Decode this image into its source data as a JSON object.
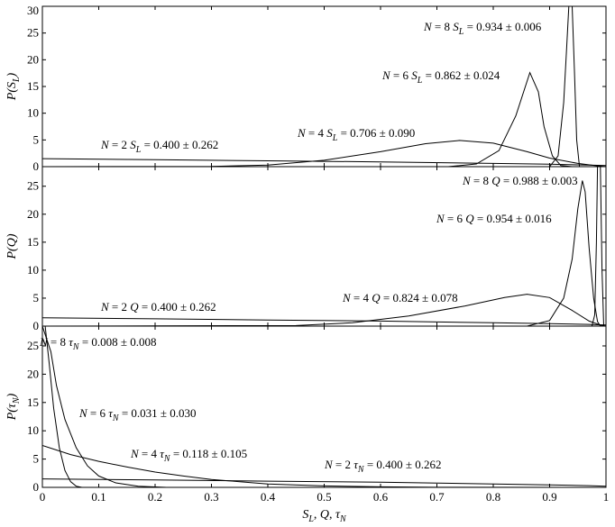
{
  "chart_data": [
    {
      "type": "line",
      "ylabel_html": "P(S_L)",
      "ylabel": {
        "base": "P(S",
        "sub": "L",
        "close": ")"
      },
      "xlim": [
        0,
        1
      ],
      "ylim": [
        0,
        30
      ],
      "yticks": [
        "0",
        "5",
        "10",
        "15",
        "20",
        "25",
        "30"
      ],
      "series": [
        {
          "N": 2,
          "points": [
            [
              0,
              1.5
            ],
            [
              0.2,
              1.3
            ],
            [
              0.4,
              1.1
            ],
            [
              0.6,
              0.9
            ],
            [
              0.8,
              0.6
            ],
            [
              0.9,
              0.45
            ],
            [
              0.97,
              0.3
            ],
            [
              1.0,
              0.2
            ]
          ]
        },
        {
          "N": 4,
          "points": [
            [
              0,
              0
            ],
            [
              0.3,
              0.05
            ],
            [
              0.4,
              0.3
            ],
            [
              0.5,
              1.2
            ],
            [
              0.6,
              2.8
            ],
            [
              0.68,
              4.3
            ],
            [
              0.74,
              4.9
            ],
            [
              0.8,
              4.4
            ],
            [
              0.86,
              2.8
            ],
            [
              0.9,
              1.6
            ],
            [
              0.95,
              0.6
            ],
            [
              0.98,
              0.2
            ],
            [
              1.0,
              0
            ]
          ]
        },
        {
          "N": 6,
          "points": [
            [
              0,
              0
            ],
            [
              0.72,
              0
            ],
            [
              0.77,
              0.5
            ],
            [
              0.81,
              3
            ],
            [
              0.84,
              9.5
            ],
            [
              0.865,
              17.6
            ],
            [
              0.88,
              14
            ],
            [
              0.89,
              7.5
            ],
            [
              0.905,
              2
            ],
            [
              0.92,
              0.2
            ],
            [
              0.94,
              0
            ],
            [
              1.0,
              0
            ]
          ]
        },
        {
          "N": 8,
          "points": [
            [
              0,
              0
            ],
            [
              0.9,
              0
            ],
            [
              0.915,
              2
            ],
            [
              0.925,
              12
            ],
            [
              0.93,
              22
            ],
            [
              0.934,
              30
            ],
            [
              0.94,
              30
            ],
            [
              0.944,
              18
            ],
            [
              0.948,
              5
            ],
            [
              0.953,
              0
            ],
            [
              1.0,
              0
            ]
          ]
        }
      ],
      "labels": [
        {
          "N": "2",
          "sym": "S",
          "sub": "L",
          "value": "0.400 ± 0.262"
        },
        {
          "N": "4",
          "sym": "S",
          "sub": "L",
          "value": "0.706 ± 0.090"
        },
        {
          "N": "6",
          "sym": "S",
          "sub": "L",
          "value": "0.862 ± 0.024"
        },
        {
          "N": "8",
          "sym": "S",
          "sub": "L",
          "value": "0.934 ± 0.006"
        }
      ]
    },
    {
      "type": "line",
      "ylabel": {
        "base": "P(Q)",
        "sub": "",
        "close": ""
      },
      "xlim": [
        0,
        1
      ],
      "ylim": [
        0,
        28.5
      ],
      "yticks": [
        "0",
        "5",
        "10",
        "15",
        "20",
        "25"
      ],
      "series": [
        {
          "N": 2,
          "points": [
            [
              0,
              1.5
            ],
            [
              0.2,
              1.3
            ],
            [
              0.4,
              1.1
            ],
            [
              0.6,
              0.9
            ],
            [
              0.8,
              0.6
            ],
            [
              0.9,
              0.45
            ],
            [
              0.97,
              0.3
            ],
            [
              1.0,
              0.2
            ]
          ]
        },
        {
          "N": 4,
          "points": [
            [
              0,
              0
            ],
            [
              0.45,
              0.1
            ],
            [
              0.55,
              0.6
            ],
            [
              0.65,
              1.8
            ],
            [
              0.75,
              3.6
            ],
            [
              0.82,
              5.1
            ],
            [
              0.86,
              5.7
            ],
            [
              0.9,
              5.1
            ],
            [
              0.94,
              2.8
            ],
            [
              0.97,
              0.9
            ],
            [
              0.99,
              0.2
            ],
            [
              1.0,
              0
            ]
          ]
        },
        {
          "N": 6,
          "points": [
            [
              0,
              0
            ],
            [
              0.86,
              0
            ],
            [
              0.9,
              1
            ],
            [
              0.925,
              5
            ],
            [
              0.94,
              12
            ],
            [
              0.95,
              21
            ],
            [
              0.958,
              26
            ],
            [
              0.963,
              24
            ],
            [
              0.97,
              14
            ],
            [
              0.978,
              5
            ],
            [
              0.985,
              0.8
            ],
            [
              0.99,
              0
            ],
            [
              1.0,
              0
            ]
          ]
        },
        {
          "N": 8,
          "points": [
            [
              0,
              0
            ],
            [
              0.975,
              0
            ],
            [
              0.98,
              2
            ],
            [
              0.983,
              15
            ],
            [
              0.985,
              28.5
            ],
            [
              0.99,
              28.5
            ],
            [
              0.993,
              10
            ],
            [
              0.996,
              0
            ],
            [
              1.0,
              0
            ]
          ]
        }
      ],
      "labels": [
        {
          "N": "2",
          "sym": "Q",
          "sub": "",
          "value": "0.400 ± 0.262"
        },
        {
          "N": "4",
          "sym": "Q",
          "sub": "",
          "value": "0.824 ± 0.078"
        },
        {
          "N": "6",
          "sym": "Q",
          "sub": "",
          "value": "0.954 ± 0.016"
        },
        {
          "N": "8",
          "sym": "Q",
          "sub": "",
          "value": "0.988 ± 0.003"
        }
      ]
    },
    {
      "type": "line",
      "ylabel": {
        "base": "P(τ",
        "sub": "N",
        "close": ")"
      },
      "xlim": [
        0,
        1
      ],
      "ylim": [
        0,
        28.5
      ],
      "yticks": [
        "0",
        "5",
        "10",
        "15",
        "20",
        "25"
      ],
      "xticks": [
        "0",
        "0.1",
        "0.2",
        "0.3",
        "0.4",
        "0.5",
        "0.6",
        "0.7",
        "0.8",
        "0.9",
        "1"
      ],
      "xlabel": {
        "parts": [
          [
            "S",
            "L"
          ],
          [
            "Q",
            ""
          ],
          [
            "τ",
            "N"
          ]
        ]
      },
      "series": [
        {
          "N": 2,
          "points": [
            [
              0,
              1.5
            ],
            [
              0.2,
              1.3
            ],
            [
              0.4,
              1.1
            ],
            [
              0.6,
              0.9
            ],
            [
              0.8,
              0.6
            ],
            [
              0.9,
              0.45
            ],
            [
              0.97,
              0.3
            ],
            [
              1.0,
              0.2
            ]
          ]
        },
        {
          "N": 4,
          "points": [
            [
              0,
              7.4
            ],
            [
              0.05,
              5.8
            ],
            [
              0.1,
              4.6
            ],
            [
              0.15,
              3.6
            ],
            [
              0.2,
              2.7
            ],
            [
              0.25,
              2.0
            ],
            [
              0.3,
              1.4
            ],
            [
              0.35,
              1.0
            ],
            [
              0.4,
              0.6
            ],
            [
              0.5,
              0.25
            ],
            [
              0.6,
              0.1
            ],
            [
              0.7,
              0.02
            ],
            [
              1.0,
              0
            ]
          ]
        },
        {
          "N": 6,
          "points": [
            [
              0,
              28.5
            ],
            [
              0.015,
              24
            ],
            [
              0.025,
              18
            ],
            [
              0.04,
              12
            ],
            [
              0.06,
              7
            ],
            [
              0.08,
              3.8
            ],
            [
              0.1,
              2
            ],
            [
              0.13,
              0.8
            ],
            [
              0.17,
              0.2
            ],
            [
              0.22,
              0
            ],
            [
              1.0,
              0
            ]
          ]
        },
        {
          "N": 8,
          "points": [
            [
              0.005,
              28.5
            ],
            [
              0.012,
              22
            ],
            [
              0.02,
              14
            ],
            [
              0.03,
              7
            ],
            [
              0.04,
              3
            ],
            [
              0.05,
              1
            ],
            [
              0.06,
              0.2
            ],
            [
              0.07,
              0
            ],
            [
              1.0,
              0
            ]
          ]
        }
      ],
      "labels": [
        {
          "N": "2",
          "sym": "τ",
          "sub": "N",
          "value": "0.400 ± 0.262"
        },
        {
          "N": "4",
          "sym": "τ",
          "sub": "N",
          "value": "0.118 ± 0.105"
        },
        {
          "N": "6",
          "sym": "τ",
          "sub": "N",
          "value": "0.031 ± 0.030"
        },
        {
          "N": "8",
          "sym": "τ",
          "sub": "N",
          "value": "0.008 ± 0.008"
        }
      ]
    }
  ]
}
